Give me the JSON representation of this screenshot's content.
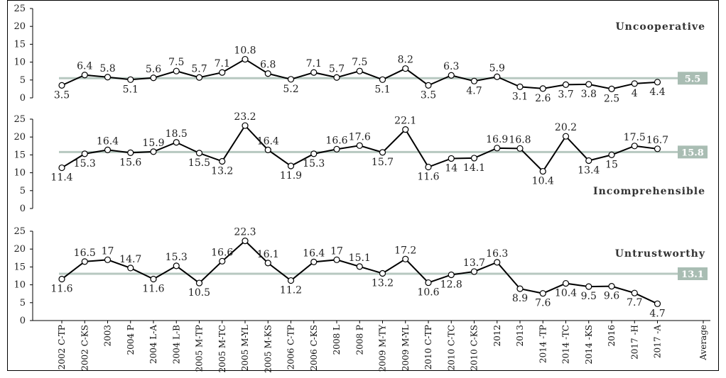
{
  "chart_data": {
    "type": "line",
    "categories": [
      "2002 C-TP",
      "2002 C-KS",
      "2003",
      "2004 P",
      "2004 L-A",
      "2004 L-B",
      "2005 M-TP",
      "2005 M-TC",
      "2005 M-YL",
      "2005 M-KS",
      "2006 C-TP",
      "2006 C-KS",
      "2008 L",
      "2008 P",
      "2009 M-TY",
      "2009 M-YL",
      "2010 C-TP",
      "2010 C-TC",
      "2010 C-KS",
      "2012",
      "2013",
      "2014 -TP",
      "2014 -TC",
      "2014 -KS",
      "2016",
      "2017 -H",
      "2017 -A",
      "Average"
    ],
    "panels": [
      {
        "title": "Uncooperative",
        "ylim": [
          0,
          25
        ],
        "yticks": [
          "0",
          "5",
          "10",
          "15",
          "20",
          "25"
        ],
        "values": [
          3.5,
          6.4,
          5.8,
          5.1,
          5.6,
          7.5,
          5.7,
          7.1,
          10.8,
          6.8,
          5.2,
          7.1,
          5.7,
          7.5,
          5.1,
          8.2,
          3.5,
          6.3,
          4.7,
          5.9,
          3.1,
          2.6,
          3.7,
          3.8,
          2.5,
          4,
          4.4
        ],
        "labels": [
          "3.5",
          "6.4",
          "5.8",
          "5.1",
          "5.6",
          "7.5",
          "5.7",
          "7.1",
          "10.8",
          "6.8",
          "5.2",
          "7.1",
          "5.7",
          "7.5",
          "5.1",
          "8.2",
          "3.5",
          "6.3",
          "4.7",
          "5.9",
          "3.1",
          "2.6",
          "3.7",
          "3.8",
          "2.5",
          "4",
          "4.4"
        ],
        "average": 5.5,
        "average_label": "5.5"
      },
      {
        "title": "Incomprehensible",
        "ylim": [
          0,
          25
        ],
        "yticks": [
          "0",
          "5",
          "10",
          "15",
          "20",
          "25"
        ],
        "values": [
          11.4,
          15.3,
          16.4,
          15.6,
          15.9,
          18.5,
          15.5,
          13.2,
          23.2,
          16.4,
          11.9,
          15.3,
          16.6,
          17.6,
          15.7,
          22.1,
          11.6,
          14,
          14.1,
          16.9,
          16.8,
          10.4,
          20.2,
          13.4,
          15,
          17.5,
          16.7
        ],
        "labels": [
          "11.4",
          "15.3",
          "16.4",
          "15.6",
          "15.9",
          "18.5",
          "15.5",
          "13.2",
          "23.2",
          "16.4",
          "11.9",
          "15.3",
          "16.6",
          "17.6",
          "15.7",
          "22.1",
          "11.6",
          "14",
          "14.1",
          "16.9",
          "16.8",
          "10.4",
          "20.2",
          "13.4",
          "15",
          "17.5",
          "16.7"
        ],
        "average": 15.8,
        "average_label": "15.8"
      },
      {
        "title": "Untrustworthy",
        "ylim": [
          0,
          25
        ],
        "yticks": [
          "0",
          "5",
          "10",
          "15",
          "20",
          "25"
        ],
        "values": [
          11.6,
          16.5,
          17,
          14.7,
          11.6,
          15.3,
          10.5,
          16.6,
          22.3,
          16.1,
          11.2,
          16.4,
          17,
          15.1,
          13.2,
          17.2,
          10.6,
          12.8,
          13.7,
          16.3,
          8.9,
          7.6,
          10.4,
          9.5,
          9.6,
          7.7,
          4.7
        ],
        "labels": [
          "11.6",
          "16.5",
          "17",
          "14.7",
          "11.6",
          "15.3",
          "10.5",
          "16.6",
          "22.3",
          "16.1",
          "11.2",
          "16.4",
          "17",
          "15.1",
          "13.2",
          "17.2",
          "10.6",
          "12.8",
          "13.7",
          "16.3",
          "8.9",
          "7.6",
          "10.4",
          "9.5",
          "9.6",
          "7.7",
          "4.7"
        ],
        "average": 13.1,
        "average_label": "13.1"
      }
    ],
    "colors": {
      "line": "#000000",
      "marker_fill": "#ffffff",
      "average_line": "#b7c8c0",
      "average_box": "#a9bdb3"
    },
    "grid": false,
    "legend": "none"
  }
}
